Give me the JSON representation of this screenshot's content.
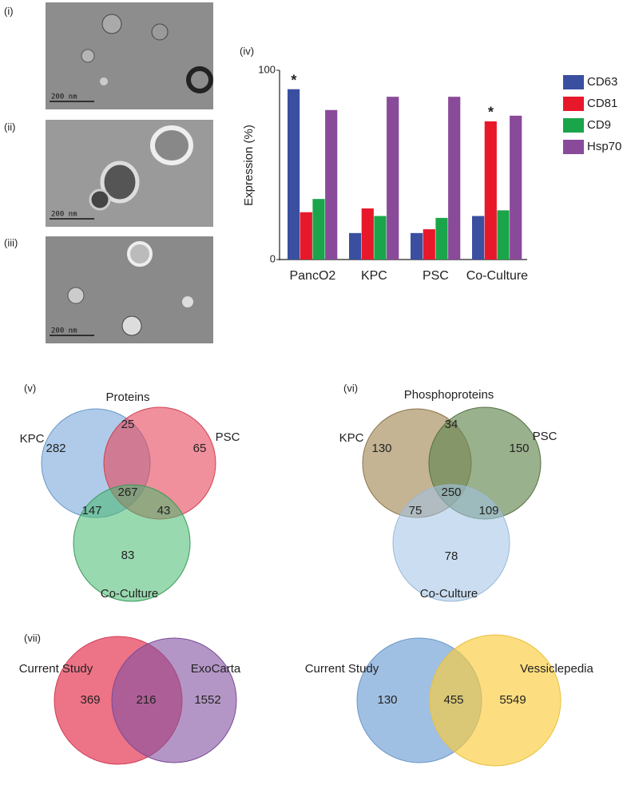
{
  "chart_data": {
    "type": "bar",
    "label": "(iv)",
    "y_label": "Expression (%)",
    "categories": [
      "PancO2",
      "KPC",
      "PSC",
      "Co-Culture"
    ],
    "series": [
      {
        "name": "CD63",
        "color": "#3a4fa0",
        "values": [
          90,
          14,
          14,
          23
        ]
      },
      {
        "name": "CD81",
        "color": "#e8182b",
        "values": [
          25,
          27,
          16,
          73
        ]
      },
      {
        "name": "CD9",
        "color": "#1aa54a",
        "values": [
          32,
          23,
          22,
          26
        ]
      },
      {
        "name": "Hsp70",
        "color": "#8a4a9a",
        "values": [
          79,
          86,
          86,
          76
        ]
      }
    ],
    "annotations": [
      "*",
      "*"
    ],
    "ylim": [
      0,
      100
    ],
    "yticks": [
      0,
      100
    ],
    "grid": false,
    "legend": "right"
  },
  "micrographs": [
    {
      "label": "(i)",
      "scale_bar": "200 nm"
    },
    {
      "label": "(ii)",
      "scale_bar": "200 nm"
    },
    {
      "label": "(iii)",
      "scale_bar": "200 nm"
    }
  ],
  "venns": [
    {
      "label": "(v)",
      "title": "Proteins",
      "sets": [
        "KPC",
        "PSC",
        "Co-Culture"
      ],
      "counts": [
        282,
        25,
        65,
        267,
        147,
        43,
        83
      ]
    },
    {
      "label": "(vi)",
      "title": "Phosphoproteins",
      "sets": [
        "KPC",
        "PSC",
        "Co-Culture"
      ],
      "counts": [
        130,
        34,
        150,
        250,
        75,
        109,
        78
      ]
    }
  ],
  "panel_vii": {
    "label": "(vii)",
    "venns": [
      {
        "sets": [
          "Current Study",
          "ExoCarta"
        ],
        "counts": [
          369,
          216,
          1552
        ]
      },
      {
        "sets": [
          "Current Study",
          "Vessiclepedia"
        ],
        "counts": [
          130,
          455,
          5549
        ]
      }
    ]
  }
}
